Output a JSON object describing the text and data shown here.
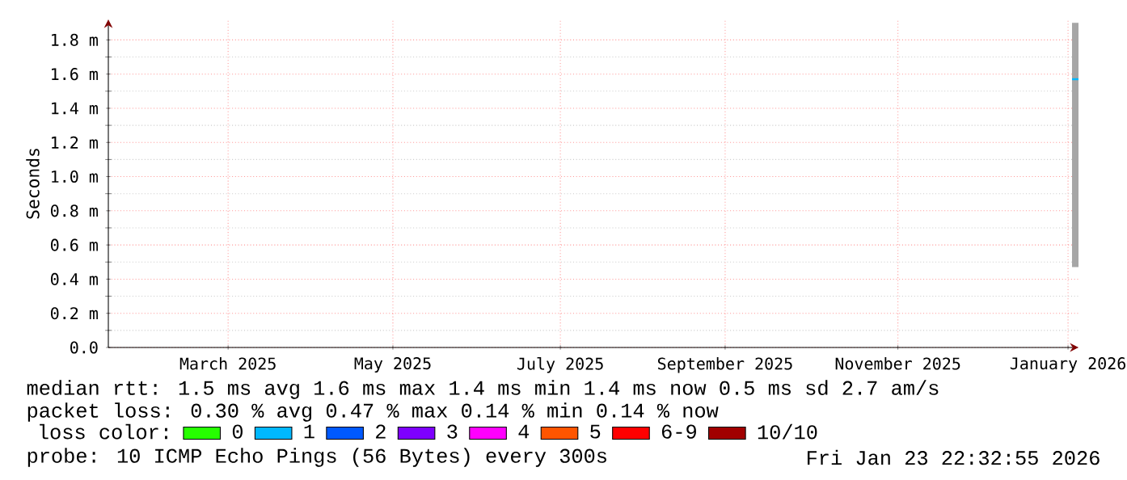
{
  "chart_data": {
    "type": "line",
    "ylabel": "Seconds",
    "xlim": [
      "2025-01-23T22:32",
      "2026-01-23T22:32"
    ],
    "xticks": [
      {
        "value": "2025-03-10",
        "label": "March 2025"
      },
      {
        "value": "2025-05-11",
        "label": "May 2025"
      },
      {
        "value": "2025-07-13",
        "label": "July 2025"
      },
      {
        "value": "2025-09-13",
        "label": "September 2025"
      },
      {
        "value": "2025-11-17",
        "label": "November 2025"
      },
      {
        "value": "2026-01-20",
        "label": "January 2026"
      }
    ],
    "ylim": [
      0,
      1.92
    ],
    "yticks": [
      {
        "value": 0,
        "label": "0.0"
      },
      {
        "value": 0.2,
        "label": "0.2 m"
      },
      {
        "value": 0.4,
        "label": "0.4 m"
      },
      {
        "value": 0.6,
        "label": "0.6 m"
      },
      {
        "value": 0.8,
        "label": "0.8 m"
      },
      {
        "value": 1.0,
        "label": "1.0 m"
      },
      {
        "value": 1.2,
        "label": "1.2 m"
      },
      {
        "value": 1.4,
        "label": "1.4 m"
      },
      {
        "value": 1.6,
        "label": "1.6 m"
      },
      {
        "value": 1.8,
        "label": "1.8 m"
      }
    ],
    "grid": true,
    "legend": "bottom",
    "legend_title": "loss color:",
    "series": [
      {
        "name": "0",
        "color": "#26ff00"
      },
      {
        "name": "1",
        "color": "#00b8ff",
        "x": [
          "2026-01-21T12:00",
          "2026-01-23T22:32"
        ],
        "values": [
          1.57,
          1.57
        ],
        "lower": [
          0.47,
          0.47
        ],
        "upper": [
          1.9,
          1.9
        ]
      },
      {
        "name": "2",
        "color": "#0059ff"
      },
      {
        "name": "3",
        "color": "#7e00ff"
      },
      {
        "name": "4",
        "color": "#ff00fe"
      },
      {
        "name": "5",
        "color": "#ff5500"
      },
      {
        "name": "6-9",
        "color": "#ff0000"
      },
      {
        "name": "10/10",
        "color": "#a10000"
      }
    ],
    "annotations": [
      "median rtt:  1.5 ms avg  1.6 ms max  1.4 ms min  1.4 ms now  0.5 ms sd  2.7   am/s",
      "packet loss: 0.30 % avg  0.47 % max  0.14 % min  0.14 % now",
      "probe:       10 ICMP Echo Pings (56 Bytes) every 300s",
      "Fri Jan 23 22:32:55 2026"
    ]
  }
}
